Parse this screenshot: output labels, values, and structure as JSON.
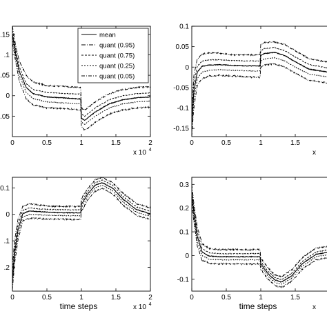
{
  "chart_data": [
    {
      "type": "line",
      "panel": "top-left",
      "xlim": [
        0,
        2
      ],
      "ylim": [
        -0.1,
        0.17
      ],
      "xticks": [
        0,
        0.5,
        1,
        1.5,
        2
      ],
      "xtick_labels": [
        "0",
        "0.5",
        "1",
        "1.5",
        "2"
      ],
      "yticks": [
        -0.05,
        0,
        0.05,
        0.1,
        0.15
      ],
      "ytick_labels": [
        ".05",
        "0",
        ".05",
        ".1",
        ".15"
      ],
      "x_multiplier_label": "x 10",
      "x_multiplier_exp": "4",
      "xlabel": "",
      "legend": {
        "placement": "top-right",
        "entries": [
          "mean",
          "quant (0.95)",
          "quant (0.75)",
          "quant (0.25)",
          "quant (0.05)"
        ]
      },
      "series": [
        {
          "name": "quant (0.95)",
          "x": [
            0,
            0.05,
            0.1,
            0.2,
            0.3,
            0.5,
            0.8,
            0.99,
            1.0,
            1.05,
            1.2,
            1.4,
            1.6,
            1.8,
            2.0
          ],
          "y": [
            0.17,
            0.12,
            0.085,
            0.05,
            0.033,
            0.025,
            0.022,
            0.02,
            -0.03,
            -0.035,
            -0.015,
            0.005,
            0.015,
            0.02,
            0.022
          ]
        },
        {
          "name": "quant (0.75)",
          "x": [
            0,
            0.05,
            0.1,
            0.2,
            0.3,
            0.5,
            0.8,
            0.99,
            1.0,
            1.05,
            1.2,
            1.4,
            1.6,
            1.8,
            2.0
          ],
          "y": [
            0.16,
            0.11,
            0.07,
            0.03,
            0.015,
            0.008,
            0.005,
            0.004,
            -0.045,
            -0.05,
            -0.03,
            -0.01,
            0.0,
            0.005,
            0.007
          ]
        },
        {
          "name": "mean",
          "x": [
            0,
            0.05,
            0.1,
            0.2,
            0.3,
            0.5,
            0.8,
            0.99,
            1.0,
            1.05,
            1.2,
            1.4,
            1.6,
            1.8,
            2.0
          ],
          "y": [
            0.15,
            0.1,
            0.06,
            0.02,
            0.005,
            -0.003,
            -0.006,
            -0.008,
            -0.055,
            -0.06,
            -0.04,
            -0.02,
            -0.01,
            -0.005,
            -0.003
          ]
        },
        {
          "name": "quant (0.25)",
          "x": [
            0,
            0.05,
            0.1,
            0.2,
            0.3,
            0.5,
            0.8,
            0.99,
            1.0,
            1.05,
            1.2,
            1.4,
            1.6,
            1.8,
            2.0
          ],
          "y": [
            0.14,
            0.09,
            0.05,
            0.008,
            -0.007,
            -0.015,
            -0.018,
            -0.02,
            -0.065,
            -0.07,
            -0.05,
            -0.03,
            -0.02,
            -0.015,
            -0.013
          ]
        },
        {
          "name": "quant (0.05)",
          "x": [
            0,
            0.05,
            0.1,
            0.2,
            0.3,
            0.5,
            0.8,
            0.99,
            1.0,
            1.05,
            1.2,
            1.4,
            1.6,
            1.8,
            2.0
          ],
          "y": [
            0.13,
            0.08,
            0.035,
            -0.008,
            -0.022,
            -0.03,
            -0.032,
            -0.035,
            -0.075,
            -0.085,
            -0.065,
            -0.045,
            -0.035,
            -0.03,
            -0.028
          ]
        }
      ]
    },
    {
      "type": "line",
      "panel": "top-right",
      "xlim": [
        0,
        2
      ],
      "ylim": [
        -0.17,
        0.1
      ],
      "xticks": [
        0,
        0.5,
        1,
        1.5
      ],
      "xtick_labels": [
        "0",
        "0.5",
        "1",
        "1.5"
      ],
      "yticks": [
        -0.15,
        -0.1,
        -0.05,
        0,
        0.05,
        0.1
      ],
      "ytick_labels": [
        "-0.15",
        "-0.1",
        "-0.05",
        "0",
        "0.05",
        "0.1"
      ],
      "x_multiplier_label": "x",
      "xlabel": "",
      "series": [
        {
          "name": "quant (0.95)",
          "x": [
            0,
            0.03,
            0.08,
            0.15,
            0.25,
            0.4,
            0.6,
            0.8,
            0.99,
            1.0,
            1.05,
            1.2,
            1.35,
            1.5,
            1.7,
            2.0
          ],
          "y": [
            -0.1,
            -0.02,
            0.02,
            0.032,
            0.035,
            0.034,
            0.03,
            0.03,
            0.03,
            0.055,
            0.06,
            0.062,
            0.055,
            0.04,
            0.02,
            0.012
          ]
        },
        {
          "name": "quant (0.75)",
          "x": [
            0,
            0.03,
            0.08,
            0.15,
            0.25,
            0.4,
            0.6,
            0.8,
            0.99,
            1.0,
            1.05,
            1.2,
            1.35,
            1.5,
            1.7,
            2.0
          ],
          "y": [
            -0.12,
            -0.04,
            0.002,
            0.015,
            0.018,
            0.018,
            0.016,
            0.015,
            0.015,
            0.04,
            0.045,
            0.048,
            0.04,
            0.025,
            0.006,
            -0.003
          ]
        },
        {
          "name": "mean",
          "x": [
            0,
            0.03,
            0.08,
            0.15,
            0.25,
            0.4,
            0.6,
            0.8,
            0.99,
            1.0,
            1.05,
            1.2,
            1.35,
            1.5,
            1.7,
            2.0
          ],
          "y": [
            -0.14,
            -0.06,
            -0.012,
            0.002,
            0.005,
            0.006,
            0.004,
            0.003,
            0.003,
            0.028,
            0.033,
            0.036,
            0.028,
            0.013,
            -0.005,
            -0.013
          ]
        },
        {
          "name": "quant (0.25)",
          "x": [
            0,
            0.03,
            0.08,
            0.15,
            0.25,
            0.4,
            0.6,
            0.8,
            0.99,
            1.0,
            1.05,
            1.2,
            1.35,
            1.5,
            1.7,
            2.0
          ],
          "y": [
            -0.155,
            -0.08,
            -0.028,
            -0.012,
            -0.008,
            -0.006,
            -0.008,
            -0.009,
            -0.01,
            0.015,
            0.02,
            0.023,
            0.015,
            0.0,
            -0.017,
            -0.025
          ]
        },
        {
          "name": "quant (0.05)",
          "x": [
            0,
            0.03,
            0.08,
            0.15,
            0.25,
            0.4,
            0.6,
            0.8,
            0.99,
            1.0,
            1.05,
            1.2,
            1.35,
            1.5,
            1.7,
            2.0
          ],
          "y": [
            -0.168,
            -0.1,
            -0.045,
            -0.028,
            -0.022,
            -0.02,
            -0.022,
            -0.024,
            -0.025,
            0.0,
            0.005,
            0.008,
            0.0,
            -0.015,
            -0.032,
            -0.04
          ]
        }
      ]
    },
    {
      "type": "line",
      "panel": "bottom-left",
      "xlim": [
        0,
        2
      ],
      "ylim": [
        -0.29,
        0.14
      ],
      "xticks": [
        0,
        0.5,
        1,
        1.5,
        2
      ],
      "xtick_labels": [
        "0",
        "0.5",
        "1",
        "1.5",
        "2"
      ],
      "yticks": [
        -0.2,
        -0.1,
        0,
        0.1
      ],
      "ytick_labels": [
        ".2",
        ".1",
        "0",
        "0.1"
      ],
      "x_multiplier_label": "x 10",
      "x_multiplier_exp": "4",
      "xlabel": "time steps",
      "series": [
        {
          "name": "quant (0.95)",
          "x": [
            0,
            0.03,
            0.08,
            0.15,
            0.25,
            0.4,
            0.6,
            0.8,
            0.99,
            1.0,
            1.1,
            1.2,
            1.3,
            1.45,
            1.6,
            1.8,
            2.0
          ],
          "y": [
            -0.2,
            -0.1,
            -0.02,
            0.03,
            0.04,
            0.035,
            0.03,
            0.03,
            0.03,
            0.06,
            0.1,
            0.13,
            0.14,
            0.12,
            0.08,
            0.04,
            0.025
          ]
        },
        {
          "name": "quant (0.75)",
          "x": [
            0,
            0.03,
            0.08,
            0.15,
            0.25,
            0.4,
            0.6,
            0.8,
            0.99,
            1.0,
            1.1,
            1.2,
            1.3,
            1.45,
            1.6,
            1.8,
            2.0
          ],
          "y": [
            -0.23,
            -0.13,
            -0.04,
            0.015,
            0.025,
            0.02,
            0.018,
            0.017,
            0.017,
            0.048,
            0.09,
            0.12,
            0.13,
            0.11,
            0.068,
            0.028,
            0.012
          ]
        },
        {
          "name": "mean",
          "x": [
            0,
            0.03,
            0.08,
            0.15,
            0.25,
            0.4,
            0.6,
            0.8,
            0.99,
            1.0,
            1.1,
            1.2,
            1.3,
            1.45,
            1.6,
            1.8,
            2.0
          ],
          "y": [
            -0.25,
            -0.15,
            -0.06,
            0.003,
            0.013,
            0.01,
            0.007,
            0.006,
            0.006,
            0.037,
            0.08,
            0.11,
            0.12,
            0.1,
            0.058,
            0.018,
            0.002
          ]
        },
        {
          "name": "quant (0.25)",
          "x": [
            0,
            0.03,
            0.08,
            0.15,
            0.25,
            0.4,
            0.6,
            0.8,
            0.99,
            1.0,
            1.1,
            1.2,
            1.3,
            1.45,
            1.6,
            1.8,
            2.0
          ],
          "y": [
            -0.27,
            -0.17,
            -0.08,
            -0.01,
            0.0,
            -0.002,
            -0.004,
            -0.005,
            -0.005,
            0.026,
            0.07,
            0.1,
            0.11,
            0.09,
            0.048,
            0.008,
            -0.008
          ]
        },
        {
          "name": "quant (0.05)",
          "x": [
            0,
            0.03,
            0.08,
            0.15,
            0.25,
            0.4,
            0.6,
            0.8,
            0.99,
            1.0,
            1.1,
            1.2,
            1.3,
            1.45,
            1.6,
            1.8,
            2.0
          ],
          "y": [
            -0.285,
            -0.19,
            -0.1,
            -0.025,
            -0.015,
            -0.016,
            -0.018,
            -0.019,
            -0.02,
            0.012,
            0.058,
            0.088,
            0.098,
            0.078,
            0.036,
            -0.004,
            -0.02
          ]
        }
      ]
    },
    {
      "type": "line",
      "panel": "bottom-right",
      "xlim": [
        0,
        2
      ],
      "ylim": [
        -0.15,
        0.33
      ],
      "xticks": [
        0,
        0.5,
        1,
        1.5
      ],
      "xtick_labels": [
        "0",
        "0.5",
        "1",
        "1.5"
      ],
      "yticks": [
        -0.1,
        0,
        0.1,
        0.2,
        0.3
      ],
      "ytick_labels": [
        "-0.1",
        "0",
        "0.1",
        "0.2",
        "0.3"
      ],
      "x_multiplier_label": "x",
      "xlabel": "time steps",
      "series": [
        {
          "name": "quant (0.95)",
          "x": [
            0,
            0.03,
            0.08,
            0.15,
            0.25,
            0.4,
            0.6,
            0.8,
            0.99,
            1.0,
            1.1,
            1.2,
            1.3,
            1.45,
            1.6,
            1.8,
            2.0
          ],
          "y": [
            0.3,
            0.22,
            0.12,
            0.05,
            0.03,
            0.025,
            0.025,
            0.025,
            0.025,
            -0.01,
            -0.05,
            -0.08,
            -0.09,
            -0.06,
            -0.01,
            0.03,
            0.04
          ]
        },
        {
          "name": "quant (0.75)",
          "x": [
            0,
            0.03,
            0.08,
            0.15,
            0.25,
            0.4,
            0.6,
            0.8,
            0.99,
            1.0,
            1.1,
            1.2,
            1.3,
            1.45,
            1.6,
            1.8,
            2.0
          ],
          "y": [
            0.28,
            0.2,
            0.1,
            0.03,
            0.012,
            0.008,
            0.008,
            0.008,
            0.008,
            -0.025,
            -0.065,
            -0.092,
            -0.102,
            -0.075,
            -0.025,
            0.015,
            0.025
          ]
        },
        {
          "name": "mean",
          "x": [
            0,
            0.03,
            0.08,
            0.15,
            0.25,
            0.4,
            0.6,
            0.8,
            0.99,
            1.0,
            1.1,
            1.2,
            1.3,
            1.45,
            1.6,
            1.8,
            2.0
          ],
          "y": [
            0.26,
            0.18,
            0.08,
            0.015,
            -0.002,
            -0.005,
            -0.005,
            -0.005,
            -0.005,
            -0.035,
            -0.075,
            -0.102,
            -0.112,
            -0.085,
            -0.035,
            0.005,
            0.015
          ]
        },
        {
          "name": "quant (0.25)",
          "x": [
            0,
            0.03,
            0.08,
            0.15,
            0.25,
            0.4,
            0.6,
            0.8,
            0.99,
            1.0,
            1.1,
            1.2,
            1.3,
            1.45,
            1.6,
            1.8,
            2.0
          ],
          "y": [
            0.24,
            0.16,
            0.06,
            0.0,
            -0.015,
            -0.018,
            -0.018,
            -0.018,
            -0.018,
            -0.045,
            -0.085,
            -0.112,
            -0.122,
            -0.095,
            -0.045,
            -0.005,
            0.005
          ]
        },
        {
          "name": "quant (0.05)",
          "x": [
            0,
            0.03,
            0.08,
            0.15,
            0.25,
            0.4,
            0.6,
            0.8,
            0.99,
            1.0,
            1.1,
            1.2,
            1.3,
            1.45,
            1.6,
            1.8,
            2.0
          ],
          "y": [
            0.22,
            0.14,
            0.04,
            -0.02,
            -0.032,
            -0.035,
            -0.035,
            -0.035,
            -0.035,
            -0.058,
            -0.098,
            -0.125,
            -0.135,
            -0.108,
            -0.058,
            -0.018,
            -0.008
          ]
        }
      ]
    }
  ]
}
